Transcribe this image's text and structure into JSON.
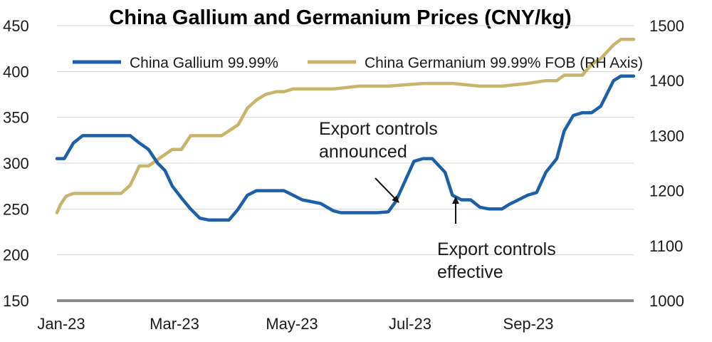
{
  "chart_data": {
    "type": "line",
    "title": "China Gallium and Germanium Prices (CNY/kg)",
    "x_ticks": [
      "Jan-23",
      "Mar-23",
      "May-23",
      "Jul-23",
      "Sep-23"
    ],
    "y_left": {
      "lim": [
        150,
        450
      ],
      "ticks": [
        "150",
        "200",
        "250",
        "300",
        "350",
        "400",
        "450"
      ]
    },
    "y_right": {
      "lim": [
        1000,
        1500
      ],
      "ticks": [
        "1000",
        "1100",
        "1200",
        "1300",
        "1400",
        "1500"
      ]
    },
    "grid": "horizontal",
    "legend_position": "top",
    "series": [
      {
        "name": "China Gallium 99.99%",
        "axis": "left",
        "color": "#1f5ea8",
        "x": [
          "2023-01-01",
          "2023-01-05",
          "2023-01-10",
          "2023-01-15",
          "2023-01-20",
          "2023-02-10",
          "2023-02-15",
          "2023-02-20",
          "2023-02-25",
          "2023-03-01",
          "2023-03-05",
          "2023-03-10",
          "2023-03-15",
          "2023-03-20",
          "2023-03-25",
          "2023-04-01",
          "2023-04-05",
          "2023-04-10",
          "2023-04-15",
          "2023-04-20",
          "2023-04-25",
          "2023-05-01",
          "2023-05-05",
          "2023-05-10",
          "2023-05-15",
          "2023-05-20",
          "2023-05-25",
          "2023-06-01",
          "2023-06-05",
          "2023-06-10",
          "2023-06-15",
          "2023-06-20",
          "2023-06-25",
          "2023-07-01",
          "2023-07-05",
          "2023-07-10",
          "2023-07-15",
          "2023-07-20",
          "2023-07-25",
          "2023-08-01",
          "2023-08-05",
          "2023-08-10",
          "2023-08-15",
          "2023-08-20",
          "2023-08-25",
          "2023-09-01",
          "2023-09-05",
          "2023-09-10",
          "2023-09-15",
          "2023-09-20",
          "2023-09-25",
          "2023-10-01",
          "2023-10-05",
          "2023-10-10",
          "2023-10-15",
          "2023-10-20",
          "2023-10-25",
          "2023-11-01",
          "2023-11-05",
          "2023-11-12"
        ],
        "values": [
          305,
          305,
          322,
          330,
          330,
          330,
          322,
          315,
          300,
          292,
          275,
          262,
          250,
          240,
          238,
          238,
          238,
          250,
          265,
          270,
          270,
          270,
          270,
          265,
          260,
          258,
          256,
          248,
          246,
          246,
          246,
          246,
          246,
          247,
          258,
          280,
          302,
          305,
          305,
          290,
          265,
          260,
          260,
          252,
          250,
          250,
          255,
          260,
          265,
          268,
          290,
          305,
          335,
          352,
          355,
          355,
          362,
          390,
          395,
          395
        ]
      },
      {
        "name": "China Germanium 99.99% FOB (RH Axis)",
        "axis": "right",
        "color": "#c8b46a",
        "x": [
          "2023-01-01",
          "2023-01-03",
          "2023-01-06",
          "2023-01-10",
          "2023-02-05",
          "2023-02-10",
          "2023-02-15",
          "2023-02-20",
          "2023-03-05",
          "2023-03-10",
          "2023-03-15",
          "2023-04-01",
          "2023-04-10",
          "2023-04-15",
          "2023-04-20",
          "2023-04-25",
          "2023-05-01",
          "2023-05-05",
          "2023-05-10",
          "2023-05-20",
          "2023-06-01",
          "2023-06-15",
          "2023-07-01",
          "2023-07-20",
          "2023-08-05",
          "2023-08-20",
          "2023-09-01",
          "2023-09-15",
          "2023-09-25",
          "2023-10-01",
          "2023-10-05",
          "2023-10-15",
          "2023-10-20",
          "2023-10-25",
          "2023-11-01",
          "2023-11-05",
          "2023-11-12"
        ],
        "values": [
          1160,
          1175,
          1190,
          1195,
          1195,
          1210,
          1245,
          1245,
          1275,
          1275,
          1300,
          1300,
          1320,
          1350,
          1365,
          1375,
          1380,
          1380,
          1385,
          1385,
          1385,
          1390,
          1390,
          1395,
          1395,
          1390,
          1390,
          1395,
          1400,
          1400,
          1410,
          1410,
          1430,
          1440,
          1465,
          1475,
          1475
        ]
      }
    ],
    "annotations": [
      {
        "text": [
          "Export controls",
          "announced"
        ],
        "arrow_to": {
          "x": "2023-06-30",
          "y": 248
        }
      },
      {
        "text": [
          "Export controls",
          "effective"
        ],
        "arrow_to": {
          "x": "2023-08-01",
          "y": 265
        }
      }
    ]
  }
}
